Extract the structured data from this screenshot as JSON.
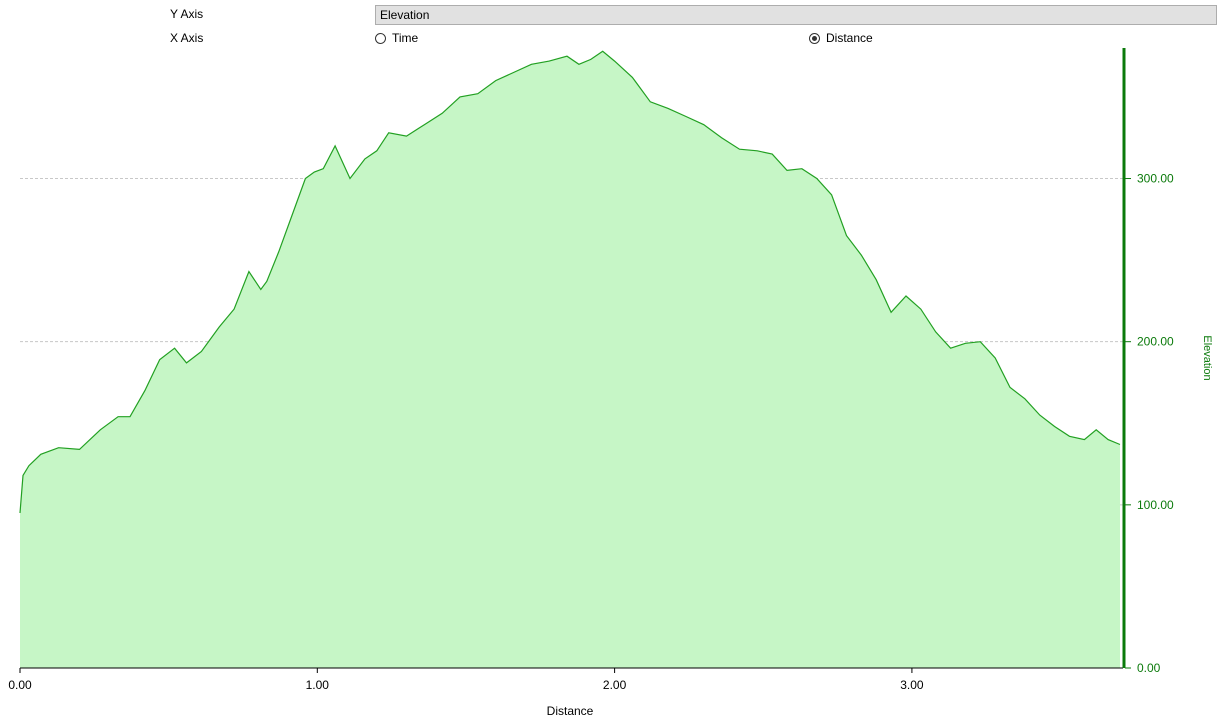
{
  "controls": {
    "y_axis_label": "Y Axis",
    "x_axis_label": "X Axis",
    "y_axis_selected": "Elevation",
    "x_axis_options": [
      {
        "label": "Time",
        "selected": false
      },
      {
        "label": "Distance",
        "selected": true
      }
    ]
  },
  "colors": {
    "fill": "#c6f6c6",
    "line": "#22a022",
    "axis": "#0b7a0b",
    "grid": "#c8c8c8"
  },
  "chart_data": {
    "type": "area",
    "xlabel": "Distance",
    "ylabel": "Elevation",
    "xlim": [
      0,
      3.71
    ],
    "ylim": [
      0,
      380
    ],
    "x_ticks": [
      "0.00",
      "1.00",
      "2.00",
      "3.00"
    ],
    "y_ticks": [
      "0.00",
      "100.00",
      "200.00",
      "300.00"
    ],
    "grid": "horizontal dashed",
    "x": [
      0,
      0.01,
      0.03,
      0.07,
      0.13,
      0.2,
      0.27,
      0.33,
      0.37,
      0.42,
      0.47,
      0.52,
      0.56,
      0.61,
      0.67,
      0.72,
      0.77,
      0.81,
      0.83,
      0.87,
      0.93,
      0.96,
      0.99,
      1.02,
      1.06,
      1.11,
      1.16,
      1.2,
      1.24,
      1.3,
      1.36,
      1.42,
      1.48,
      1.54,
      1.6,
      1.66,
      1.72,
      1.78,
      1.84,
      1.88,
      1.92,
      1.96,
      2.0,
      2.06,
      2.12,
      2.18,
      2.24,
      2.3,
      2.36,
      2.42,
      2.48,
      2.53,
      2.58,
      2.63,
      2.68,
      2.73,
      2.78,
      2.83,
      2.88,
      2.93,
      2.98,
      3.03,
      3.08,
      3.13,
      3.18,
      3.23,
      3.28,
      3.33,
      3.38,
      3.43,
      3.48,
      3.53,
      3.58,
      3.62,
      3.66,
      3.7
    ],
    "values": [
      95,
      118,
      124,
      131,
      135,
      134,
      146,
      154,
      154,
      170,
      189,
      196,
      187,
      194,
      209,
      220,
      243,
      232,
      237,
      255,
      285,
      300,
      304,
      306,
      320,
      300,
      312,
      317,
      328,
      326,
      333,
      340,
      350,
      352,
      360,
      365,
      370,
      372,
      375,
      370,
      373,
      378,
      372,
      362,
      347,
      343,
      338,
      333,
      325,
      318,
      317,
      315,
      305,
      306,
      300,
      290,
      265,
      253,
      238,
      218,
      228,
      220,
      206,
      196,
      199,
      200,
      190,
      172,
      165,
      155,
      148,
      142,
      140,
      146,
      140,
      137
    ]
  }
}
